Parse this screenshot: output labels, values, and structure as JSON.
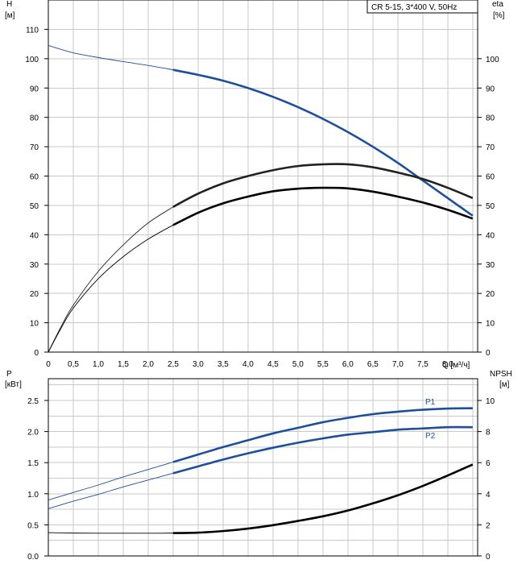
{
  "legend": "CR 5-15, 3*400 V, 50Hz",
  "colors": {
    "blue": "#1f4e9a",
    "black": "#000000",
    "grid": "#c8c8c8",
    "thin_black": "#222222"
  },
  "chart_data": [
    {
      "type": "line",
      "xlabel": "Q [м³/ч]",
      "xlim": [
        0,
        8.6
      ],
      "x_ticks": [
        "0",
        "0,5",
        "1,0",
        "1,5",
        "2,0",
        "2,5",
        "3,0",
        "3,5",
        "4,0",
        "4,5",
        "5,0",
        "5,5",
        "6,0",
        "6,5",
        "7,0",
        "7,5",
        "8,0"
      ],
      "x_tick_values": [
        0,
        0.5,
        1.0,
        1.5,
        2.0,
        2.5,
        3.0,
        3.5,
        4.0,
        4.5,
        5.0,
        5.5,
        6.0,
        6.5,
        7.0,
        7.5,
        8.0
      ],
      "left_axis": {
        "label_line1": "H",
        "label_line2": "[м]",
        "ylim": [
          0,
          120
        ],
        "ticks": [
          "0",
          "10",
          "20",
          "30",
          "40",
          "50",
          "60",
          "70",
          "80",
          "90",
          "100",
          "110"
        ]
      },
      "right_axis": {
        "label_line1": "eta",
        "label_line2": "[%]",
        "ylim": [
          0,
          120
        ],
        "ticks": [
          "0",
          "10",
          "20",
          "30",
          "40",
          "50",
          "60",
          "70",
          "80",
          "90",
          "100"
        ]
      },
      "grid": true,
      "legend_position": "top-right",
      "series": [
        {
          "axis": "left",
          "color": "blue",
          "thin": {
            "x": [
              0,
              0.5,
              1.0,
              1.5,
              2.0,
              2.5
            ],
            "y": [
              104.5,
              102.0,
              100.4,
              99.0,
              97.7,
              96.2
            ]
          },
          "bold": {
            "x": [
              2.5,
              3.0,
              3.5,
              4.0,
              4.5,
              5.0,
              5.5,
              6.0,
              6.5,
              7.0,
              7.5,
              8.0,
              8.5
            ],
            "y": [
              96.2,
              94.5,
              92.5,
              90.0,
              87.0,
              83.5,
              79.5,
              75.0,
              70.0,
              64.5,
              58.5,
              52.5,
              46.5
            ]
          }
        },
        {
          "axis": "right",
          "color": "thin_black",
          "thin": {
            "x": [
              0,
              0.25,
              0.5,
              1.0,
              1.5,
              2.0,
              2.5
            ],
            "y": [
              0,
              8.5,
              16.0,
              27.5,
              36.5,
              44.0,
              49.5
            ]
          },
          "bold": {
            "x": [
              2.5,
              3.0,
              3.5,
              4.0,
              4.5,
              5.0,
              5.5,
              6.0,
              6.5,
              7.0,
              7.5,
              8.0,
              8.5
            ],
            "y": [
              49.5,
              54.0,
              57.5,
              60.0,
              62.0,
              63.4,
              64.0,
              64.0,
              63.0,
              61.2,
              59.0,
              56.0,
              52.5
            ]
          }
        },
        {
          "axis": "left",
          "color": "black",
          "thin": {
            "x": [
              0,
              0.25,
              0.5,
              1.0,
              1.5,
              2.0,
              2.5
            ],
            "y": [
              0,
              8.0,
              15.0,
              25.0,
              32.5,
              38.5,
              43.3
            ]
          },
          "bold": {
            "x": [
              2.5,
              3.0,
              3.5,
              4.0,
              4.5,
              5.0,
              5.5,
              6.0,
              6.5,
              7.0,
              7.5,
              8.0,
              8.5
            ],
            "y": [
              43.3,
              47.5,
              50.7,
              53.0,
              54.8,
              55.7,
              56.0,
              55.8,
              54.7,
              53.0,
              51.0,
              48.5,
              45.5
            ]
          }
        }
      ]
    },
    {
      "type": "line",
      "xlim": [
        0,
        8.6
      ],
      "left_axis": {
        "label_line1": "P",
        "label_line2": "[кВт]",
        "ylim": [
          0,
          2.85
        ],
        "ticks": [
          "0.0",
          "0.5",
          "1.0",
          "1.5",
          "2.0",
          "2.5"
        ],
        "tick_values": [
          0,
          0.5,
          1.0,
          1.5,
          2.0,
          2.5
        ]
      },
      "right_axis": {
        "label_line1": "NPSH",
        "label_line2": "[м]",
        "ylim": [
          0,
          11.4
        ],
        "ticks": [
          "0",
          "2",
          "4",
          "6",
          "8",
          "10"
        ],
        "tick_values": [
          0,
          2,
          4,
          6,
          8,
          10
        ]
      },
      "grid": true,
      "series": [
        {
          "name": "P1",
          "axis": "left",
          "color": "blue",
          "thin": {
            "x": [
              0,
              0.5,
              1.0,
              1.5,
              2.0,
              2.5
            ],
            "y": [
              0.9,
              1.02,
              1.14,
              1.27,
              1.39,
              1.51
            ]
          },
          "bold": {
            "x": [
              2.5,
              3.0,
              3.5,
              4.0,
              4.5,
              5.0,
              5.5,
              6.0,
              6.5,
              7.0,
              7.5,
              8.0,
              8.5
            ],
            "y": [
              1.51,
              1.63,
              1.75,
              1.86,
              1.97,
              2.06,
              2.15,
              2.22,
              2.28,
              2.32,
              2.35,
              2.37,
              2.375
            ]
          }
        },
        {
          "name": "P2",
          "axis": "left",
          "color": "blue",
          "thin": {
            "x": [
              0,
              0.5,
              1.0,
              1.5,
              2.0,
              2.5
            ],
            "y": [
              0.76,
              0.88,
              0.99,
              1.11,
              1.22,
              1.33
            ]
          },
          "bold": {
            "x": [
              2.5,
              3.0,
              3.5,
              4.0,
              4.5,
              5.0,
              5.5,
              6.0,
              6.5,
              7.0,
              7.5,
              8.0,
              8.5
            ],
            "y": [
              1.33,
              1.44,
              1.55,
              1.65,
              1.74,
              1.82,
              1.89,
              1.95,
              1.99,
              2.03,
              2.05,
              2.07,
              2.07
            ]
          }
        },
        {
          "axis": "right",
          "color": "black",
          "thin": {
            "x": [
              0,
              0.5,
              1.0,
              1.5,
              2.0,
              2.5
            ],
            "y": [
              1.5,
              1.47,
              1.46,
              1.46,
              1.46,
              1.47
            ]
          },
          "bold": {
            "x": [
              2.5,
              3.0,
              3.5,
              4.0,
              4.5,
              5.0,
              5.5,
              6.0,
              6.5,
              7.0,
              7.5,
              8.0,
              8.5
            ],
            "y": [
              1.47,
              1.5,
              1.6,
              1.76,
              1.98,
              2.25,
              2.55,
              2.92,
              3.38,
              3.9,
              4.5,
              5.17,
              5.88
            ]
          }
        }
      ]
    }
  ]
}
